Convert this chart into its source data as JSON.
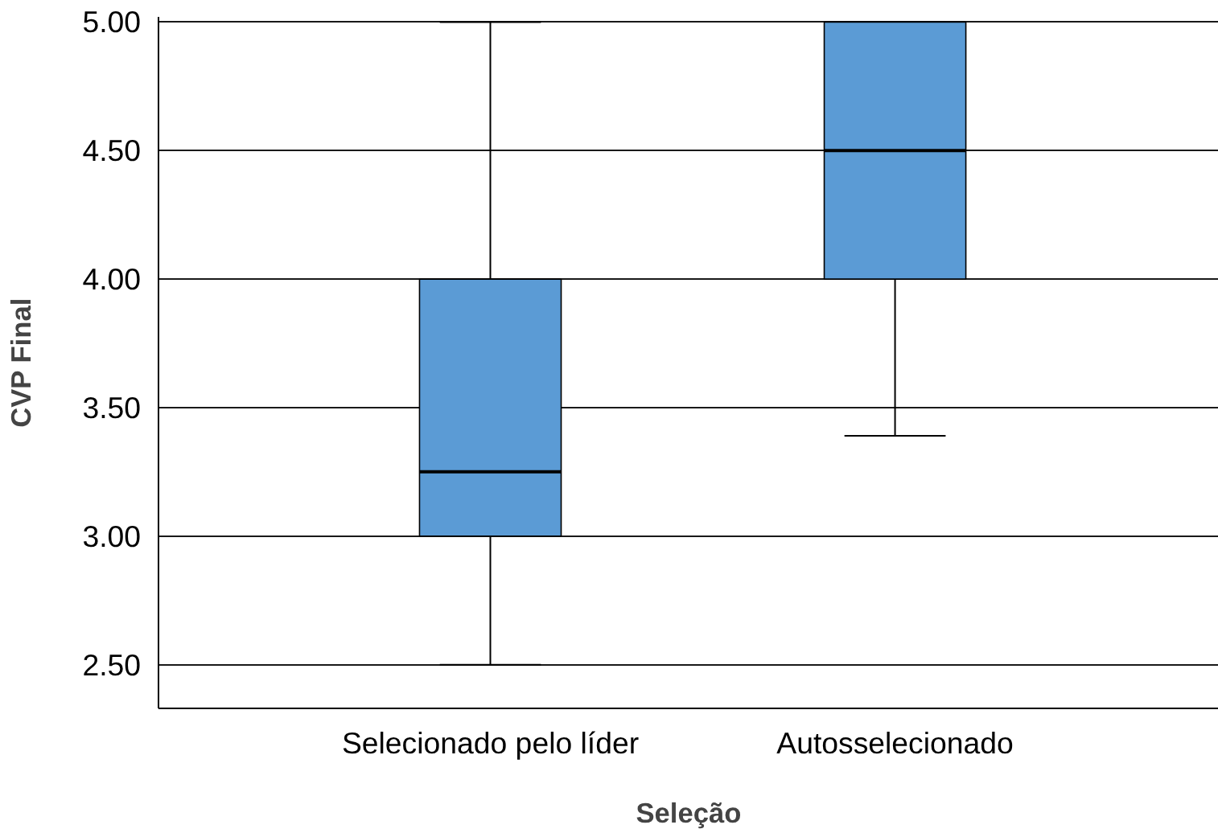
{
  "chart_data": {
    "type": "box",
    "xlabel": "Seleção",
    "ylabel": "CVP Final",
    "categories": [
      "Selecionado pelo líder",
      "Autosselecionado"
    ],
    "boxes": [
      {
        "low": 2.5,
        "q1": 3.0,
        "median": 3.25,
        "q3": 4.0,
        "high": 5.0
      },
      {
        "low": 3.39,
        "q1": 4.0,
        "median": 4.5,
        "q3": 5.0,
        "high": 5.0
      }
    ],
    "color": "#5b9bd5",
    "ylim": [
      2.33,
      5.02
    ],
    "yticks": [
      {
        "value": 2.5,
        "label": "2.50"
      },
      {
        "value": 3.0,
        "label": "3.00"
      },
      {
        "value": 3.5,
        "label": "3.50"
      },
      {
        "value": 4.0,
        "label": "4.00"
      },
      {
        "value": 4.5,
        "label": "4.50"
      },
      {
        "value": 5.0,
        "label": "5.00"
      }
    ],
    "grid": "y"
  }
}
